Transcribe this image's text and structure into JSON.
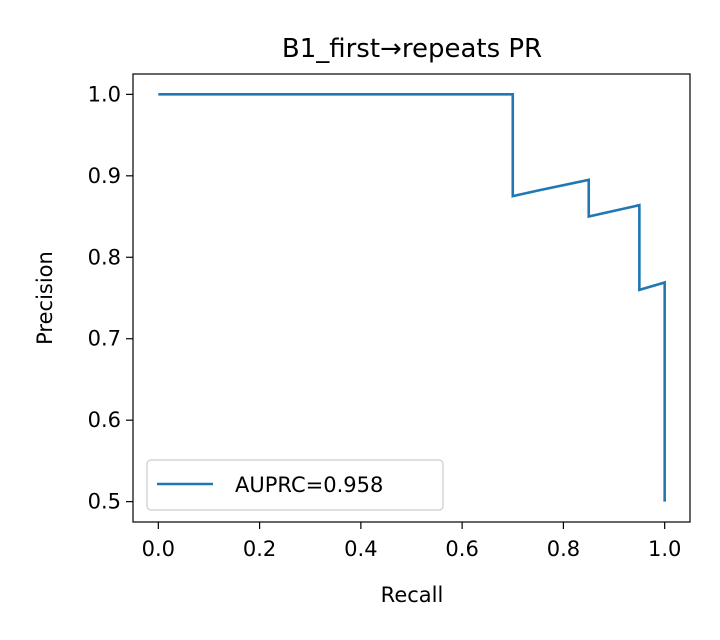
{
  "chart_data": {
    "type": "line",
    "title": "B1_first→repeats PR",
    "xlabel": "Recall",
    "ylabel": "Precision",
    "xlim": [
      -0.05,
      1.05
    ],
    "ylim": [
      0.475,
      1.025
    ],
    "x_ticks": [
      0.0,
      0.2,
      0.4,
      0.6,
      0.8,
      1.0
    ],
    "x_tick_labels": [
      "0.0",
      "0.2",
      "0.4",
      "0.6",
      "0.8",
      "1.0"
    ],
    "y_ticks": [
      0.5,
      0.6,
      0.7,
      0.8,
      0.9,
      1.0
    ],
    "y_tick_labels": [
      "0.5",
      "0.6",
      "0.7",
      "0.8",
      "0.9",
      "1.0"
    ],
    "grid": false,
    "legend_position": "lower-left",
    "series": [
      {
        "name": "AUPRC=0.958",
        "color": "#1f77b4",
        "x": [
          0.0,
          0.7,
          0.7,
          0.75,
          0.85,
          0.85,
          0.95,
          0.95,
          1.0,
          1.0
        ],
        "y": [
          1.0,
          1.0,
          0.875,
          0.882,
          0.895,
          0.85,
          0.864,
          0.76,
          0.769,
          0.5
        ]
      }
    ]
  }
}
